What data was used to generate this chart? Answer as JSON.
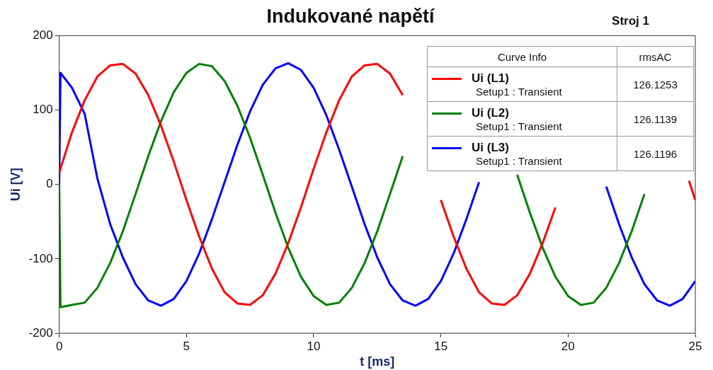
{
  "chart_data": {
    "type": "line",
    "title": "Indukované napětí",
    "xlabel": "t [ms]",
    "ylabel": "Ui [V]",
    "legend_title": "Curve Info",
    "legend": "top right",
    "annotations": [
      "Stroj 1",
      "rmsAC",
      "Setup1 : Transient",
      "Setup1 : Transient",
      "Setup1 : Transient",
      "126.1253",
      "126.1139",
      "126.1196"
    ],
    "x": [
      0,
      0.05,
      0.5,
      1,
      1.5,
      2,
      2.5,
      3,
      3.5,
      4,
      4.5,
      5,
      5.5,
      6,
      6.5,
      7,
      7.5,
      8,
      8.5,
      9,
      9.5,
      10,
      10.5,
      11,
      11.5,
      12,
      12.5,
      13,
      13.5,
      14,
      14.5,
      15,
      15.5,
      16,
      16.5,
      17,
      17.5,
      18,
      18.5,
      19,
      19.5,
      20,
      20.5,
      21,
      21.5,
      22,
      22.5,
      23,
      23.5,
      24,
      24.5,
      25
    ],
    "xlim": [
      0,
      25
    ],
    "xticks": [
      0,
      5,
      10,
      15,
      20,
      25
    ],
    "ylim": [
      -200,
      200
    ],
    "yticks": [
      -200,
      -100,
      0,
      100,
      200
    ],
    "series": [
      {
        "name": "Ui (L1)",
        "color": "#ff0000",
        "x": [
          0,
          0.05,
          0.5,
          1,
          1.5,
          2,
          2.5,
          3,
          3.5,
          4,
          4.5,
          5,
          5.5,
          6,
          6.5,
          7,
          7.5,
          8,
          8.5,
          9,
          9.5,
          10,
          10.5,
          11,
          11.5,
          12,
          12.5,
          13,
          13.5,
          14,
          14.5,
          15,
          15.5,
          16,
          16.5,
          17,
          17.5,
          18,
          18.5,
          19,
          19.5,
          20,
          20.5,
          21,
          21.5,
          22,
          22.5,
          23,
          23.5,
          24,
          24.5,
          24.75,
          25
        ],
        "values": [
          15,
          21,
          70,
          113,
          145,
          160,
          162,
          149,
          120,
          79,
          31,
          -21,
          -70,
          -113,
          -145,
          -160,
          -162,
          -149,
          -120,
          -79,
          -31,
          21,
          70,
          113,
          145,
          160,
          162,
          149,
          120,
          null,
          null,
          -21,
          -70,
          -113,
          -145,
          -160,
          -162,
          -149,
          -120,
          -79,
          -31,
          null,
          null,
          null,
          null,
          null,
          null,
          null,
          null,
          null,
          null,
          5,
          -21
        ]
      },
      {
        "name": "Ui (L2)",
        "color": "#008000",
        "values": [
          0,
          -165,
          -162,
          -159,
          -139,
          -106,
          -63,
          -13,
          38,
          85,
          124,
          150,
          162,
          159,
          139,
          106,
          63,
          13,
          -38,
          -85,
          -124,
          -150,
          -162,
          -159,
          -139,
          -106,
          -63,
          -13,
          38,
          null,
          null,
          null,
          null,
          null,
          null,
          null,
          null,
          13,
          -38,
          -85,
          -124,
          -150,
          -162,
          -159,
          -139,
          -106,
          -63,
          -13,
          null,
          null,
          null,
          null
        ]
      },
      {
        "name": "Ui (L3)",
        "color": "#0000ff",
        "values": [
          0,
          150,
          130,
          95,
          8,
          -53,
          -98,
          -134,
          -156,
          -163,
          -154,
          -130,
          -93,
          -47,
          3,
          53,
          98,
          134,
          156,
          163,
          154,
          130,
          93,
          47,
          -3,
          -53,
          -98,
          -134,
          -156,
          -163,
          -154,
          -130,
          -93,
          -47,
          3,
          null,
          null,
          null,
          null,
          null,
          null,
          null,
          null,
          null,
          -3,
          -53,
          -98,
          -134,
          -156,
          -163,
          -154,
          -130
        ]
      }
    ]
  }
}
